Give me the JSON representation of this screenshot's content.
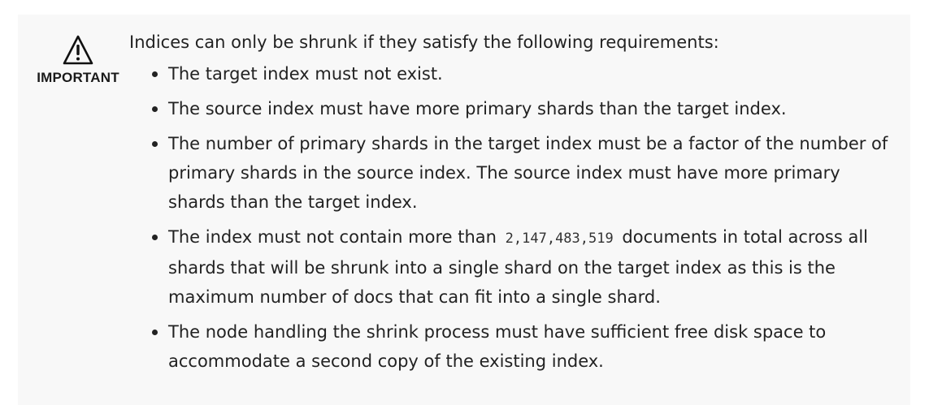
{
  "admonition": {
    "label": "IMPORTANT",
    "icon": "warning-triangle-icon",
    "intro": "Indices can only be shrunk if they satisfy the following requirements:",
    "items": [
      {
        "text": "The target index must not exist."
      },
      {
        "text": "The source index must have more primary shards than the target index."
      },
      {
        "text": "The number of primary shards in the target index must be a factor of the number of primary shards in the source index. The source index must have more primary shards than the target index."
      },
      {
        "before": "The index must not contain more than",
        "code": "2,147,483,519",
        "after": "documents in total across all shards that will be shrunk into a single shard on the target index as this is the maximum number of docs that can fit into a single shard."
      },
      {
        "text": "The node handling the shrink process must have sufficient free disk space to accommodate a second copy of the existing index."
      }
    ]
  }
}
